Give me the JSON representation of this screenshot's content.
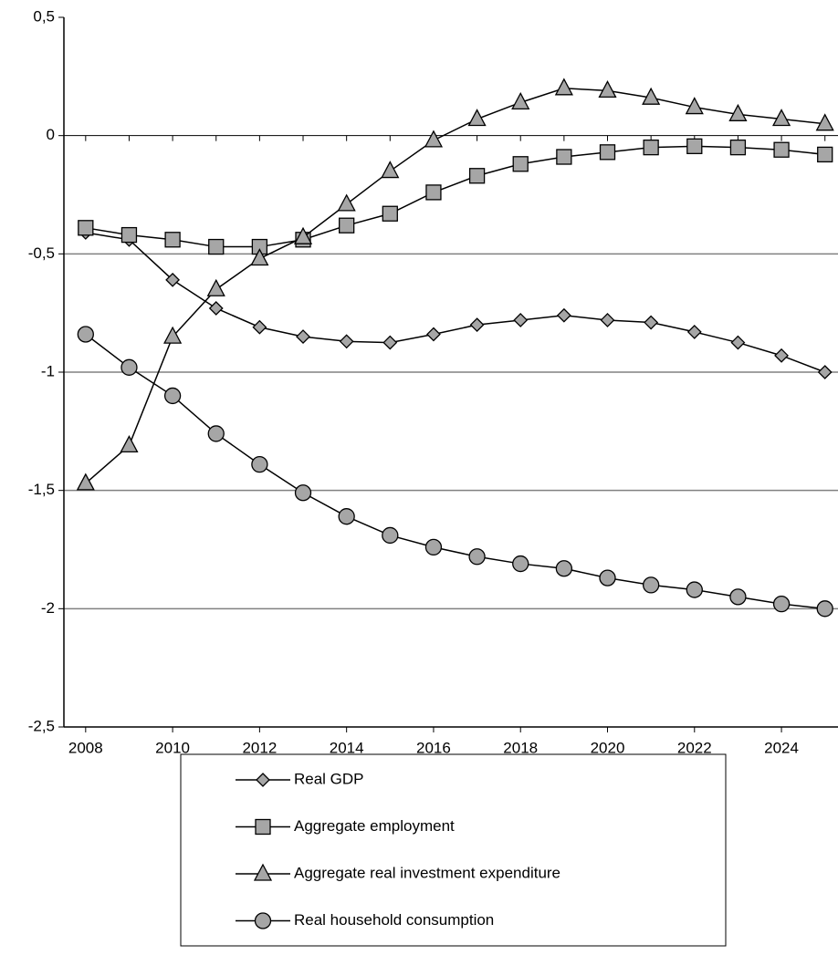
{
  "chart_data": {
    "type": "line",
    "x": [
      2008,
      2009,
      2010,
      2011,
      2012,
      2013,
      2014,
      2015,
      2016,
      2017,
      2018,
      2019,
      2020,
      2021,
      2022,
      2023,
      2024,
      2025
    ],
    "xlim": [
      2007.5,
      2025.3
    ],
    "xticks": [
      2008,
      2010,
      2012,
      2014,
      2016,
      2018,
      2020,
      2022,
      2024
    ],
    "ylim": [
      -2.5,
      0.5
    ],
    "yticks": [
      {
        "value": 0.5,
        "label": "0,5"
      },
      0,
      {
        "value": -0.5,
        "label": "-0,5"
      },
      -1,
      {
        "value": -1.5,
        "label": "-1,5"
      },
      -2,
      {
        "value": -2.5,
        "label": "-2,5"
      }
    ],
    "grid": true,
    "legend": "bottom",
    "series": [
      {
        "name": "Real GDP",
        "color": "#a6a6a6",
        "marker": "diamond",
        "values": [
          -0.41,
          -0.44,
          -0.61,
          -0.73,
          -0.81,
          -0.85,
          -0.87,
          -0.875,
          -0.84,
          -0.8,
          -0.78,
          -0.76,
          -0.78,
          -0.79,
          -0.83,
          -0.875,
          -0.93,
          -1.0
        ]
      },
      {
        "name": "Aggregate employment",
        "color": "#a6a6a6",
        "marker": "square",
        "values": [
          -0.39,
          -0.42,
          -0.44,
          -0.47,
          -0.47,
          -0.44,
          -0.38,
          -0.33,
          -0.24,
          -0.17,
          -0.12,
          -0.09,
          -0.07,
          -0.05,
          -0.045,
          -0.05,
          -0.06,
          -0.08
        ]
      },
      {
        "name": "Aggregate real investment expenditure",
        "color": "#a6a6a6",
        "marker": "triangle",
        "values": [
          -1.47,
          -1.31,
          -0.85,
          -0.65,
          -0.52,
          -0.43,
          -0.29,
          -0.15,
          -0.02,
          0.07,
          0.14,
          0.2,
          0.19,
          0.16,
          0.12,
          0.09,
          0.07,
          0.05
        ]
      },
      {
        "name": "Real household consumption",
        "color": "#a6a6a6",
        "marker": "circle",
        "values": [
          -0.84,
          -0.98,
          -1.1,
          -1.26,
          -1.39,
          -1.51,
          -1.61,
          -1.69,
          -1.74,
          -1.78,
          -1.81,
          -1.83,
          -1.87,
          -1.9,
          -1.92,
          -1.95,
          -1.98,
          -2.0
        ]
      }
    ]
  }
}
